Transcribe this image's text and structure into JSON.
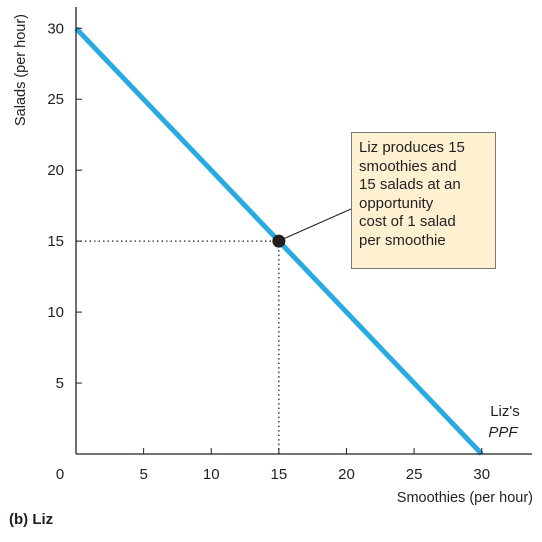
{
  "chart_data": {
    "type": "line",
    "xlabel": "Smoothies (per hour)",
    "ylabel": "Salads (per hour)",
    "xlim": [
      0,
      31.5
    ],
    "ylim": [
      0,
      31.5
    ],
    "x_ticks": [
      0,
      5,
      10,
      15,
      20,
      25,
      30
    ],
    "y_ticks": [
      5,
      10,
      15,
      20,
      25,
      30
    ],
    "grid": false,
    "series": [
      {
        "name": "Liz's PPF",
        "color": "#29abe2",
        "points": [
          [
            0,
            30
          ],
          [
            30,
            0
          ]
        ]
      }
    ],
    "highlight_point": {
      "x": 15,
      "y": 15,
      "color": "#231f20",
      "guide_lines": "dotted"
    },
    "curve_label": {
      "line1": "Liz's",
      "line2": "PPF"
    },
    "annotation": {
      "lines": [
        "Liz produces 15",
        "smoothies and",
        "15 salads at an",
        "opportunity",
        "cost of 1 salad",
        "per smoothie"
      ],
      "background": "#fdf1d2"
    }
  },
  "panel_label": "(b) Liz"
}
